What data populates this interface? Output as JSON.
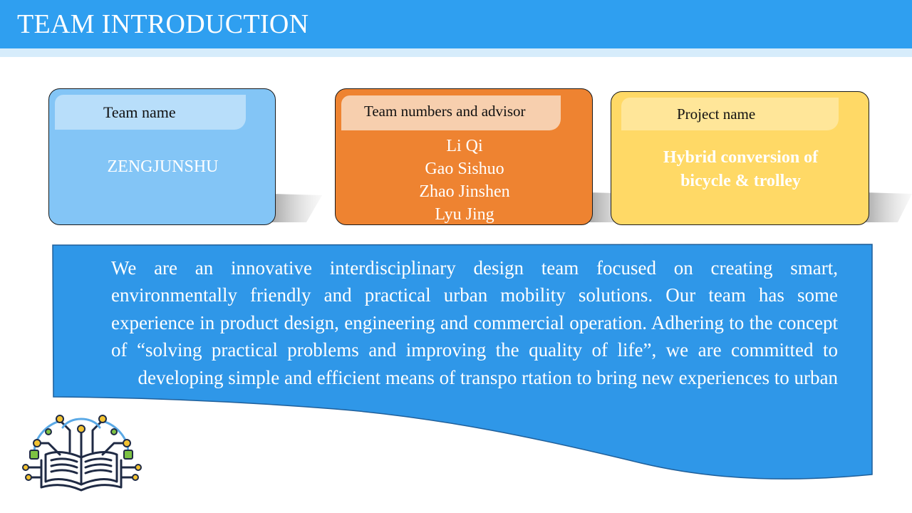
{
  "header": {
    "title": "TEAM INTRODUCTION"
  },
  "cards": {
    "team_name": {
      "label": "Team name",
      "value": "ZENGJUNSHU"
    },
    "team_members": {
      "label": "Team numbers and advisor",
      "members": [
        "Li Qi",
        "Gao Sishuo",
        "Zhao Jinshen",
        "Lyu Jing"
      ]
    },
    "project": {
      "label": "Project name",
      "value_line1": "Hybrid conversion of",
      "value_line2": "bicycle & trolley"
    }
  },
  "description": "We are an innovative interdisciplinary design team focused on creating smart, environmentally friendly and practical urban mobility solutions. Our team has some experience in product design, engineering and commercial operation. Adhering to the concept of “solving practical problems and improving the quality of life”, we are committed to developing simple and efficient means of transpo rtation to bring new experiences to urban",
  "colors": {
    "header": "#2f9ff0",
    "card_blue": "#83c5f6",
    "card_orange": "#ee8331",
    "card_yellow": "#ffd966",
    "desc_blue": "#2f97e8"
  },
  "icons": {
    "logo": "circuit-book-icon"
  }
}
